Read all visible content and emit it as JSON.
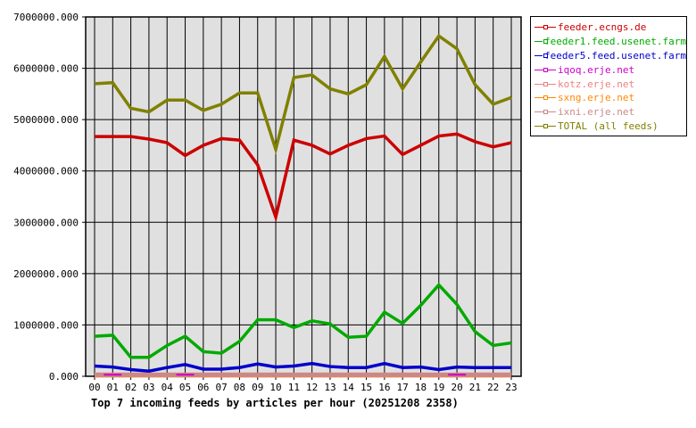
{
  "chart_data": {
    "type": "line",
    "title": "Top 7 incoming feeds by articles per hour (20251208 2358)",
    "xlabel": "",
    "ylabel": "",
    "ylim": [
      0,
      7000000
    ],
    "grid": true,
    "legend_position": "right",
    "y_ticks": [
      "0.000",
      "1000000.000",
      "2000000.000",
      "3000000.000",
      "4000000.000",
      "5000000.000",
      "6000000.000",
      "7000000.000"
    ],
    "x": [
      "00",
      "01",
      "02",
      "03",
      "04",
      "05",
      "06",
      "07",
      "08",
      "09",
      "10",
      "11",
      "12",
      "13",
      "14",
      "15",
      "16",
      "17",
      "18",
      "19",
      "20",
      "21",
      "22",
      "23"
    ],
    "series": [
      {
        "name": "feeder.ecngs.de",
        "color": "#cc0000",
        "values": [
          4670000,
          4670000,
          4670000,
          4620000,
          4550000,
          4300000,
          4500000,
          4630000,
          4600000,
          4120000,
          3100000,
          4600000,
          4500000,
          4330000,
          4500000,
          4630000,
          4680000,
          4320000,
          4500000,
          4680000,
          4720000,
          4570000,
          4470000,
          4550000
        ]
      },
      {
        "name": "feeder1.feed.usenet.farm",
        "color": "#00aa00",
        "values": [
          780000,
          800000,
          370000,
          370000,
          600000,
          780000,
          480000,
          450000,
          680000,
          1100000,
          1100000,
          950000,
          1080000,
          1020000,
          760000,
          780000,
          1250000,
          1030000,
          1380000,
          1780000,
          1400000,
          870000,
          600000,
          650000
        ]
      },
      {
        "name": "feeder5.feed.usenet.farm",
        "color": "#0000cc",
        "values": [
          200000,
          180000,
          130000,
          100000,
          170000,
          230000,
          140000,
          140000,
          170000,
          240000,
          180000,
          200000,
          250000,
          190000,
          170000,
          170000,
          250000,
          170000,
          180000,
          130000,
          180000,
          170000,
          170000,
          170000
        ]
      },
      {
        "name": "iqoq.erje.net",
        "color": "#cc00cc",
        "values": [
          null,
          30000,
          null,
          null,
          null,
          30000,
          null,
          null,
          null,
          null,
          null,
          null,
          null,
          null,
          null,
          null,
          null,
          null,
          null,
          null,
          30000,
          null,
          null,
          null
        ]
      },
      {
        "name": "kotz.erje.net",
        "color": "#ee8080",
        "values": [
          30000,
          30000,
          30000,
          30000,
          30000,
          30000,
          30000,
          30000,
          30000,
          30000,
          30000,
          30000,
          30000,
          30000,
          30000,
          30000,
          30000,
          30000,
          30000,
          30000,
          30000,
          30000,
          30000,
          30000
        ]
      },
      {
        "name": "sxng.erje.net",
        "color": "#ff8800",
        "values": [
          20000,
          20000,
          20000,
          20000,
          20000,
          20000,
          20000,
          20000,
          20000,
          20000,
          20000,
          20000,
          20000,
          20000,
          20000,
          20000,
          20000,
          20000,
          20000,
          20000,
          20000,
          20000,
          20000,
          20000
        ]
      },
      {
        "name": "ixni.erje.net",
        "color": "#cc8888",
        "values": [
          25000,
          25000,
          25000,
          25000,
          25000,
          25000,
          25000,
          25000,
          25000,
          25000,
          25000,
          25000,
          25000,
          25000,
          25000,
          25000,
          25000,
          25000,
          25000,
          25000,
          25000,
          25000,
          25000,
          25000
        ]
      },
      {
        "name": "TOTAL (all feeds)",
        "color": "#808000",
        "values": [
          5700000,
          5720000,
          5220000,
          5150000,
          5380000,
          5380000,
          5180000,
          5300000,
          5520000,
          5520000,
          4420000,
          5820000,
          5870000,
          5600000,
          5500000,
          5680000,
          6230000,
          5600000,
          6120000,
          6630000,
          6380000,
          5680000,
          5300000,
          5430000
        ]
      }
    ]
  },
  "legend": {
    "items": [
      {
        "label": "feeder.ecngs.de",
        "color": "#cc0000"
      },
      {
        "label": "feeder1.feed.usenet.farm",
        "color": "#00aa00"
      },
      {
        "label": "feeder5.feed.usenet.farm",
        "color": "#0000cc"
      },
      {
        "label": "iqoq.erje.net",
        "color": "#cc00cc"
      },
      {
        "label": "kotz.erje.net",
        "color": "#ee8080"
      },
      {
        "label": "sxng.erje.net",
        "color": "#ff8800"
      },
      {
        "label": "ixni.erje.net",
        "color": "#cc8888"
      },
      {
        "label": "TOTAL (all feeds)",
        "color": "#808000"
      }
    ]
  }
}
